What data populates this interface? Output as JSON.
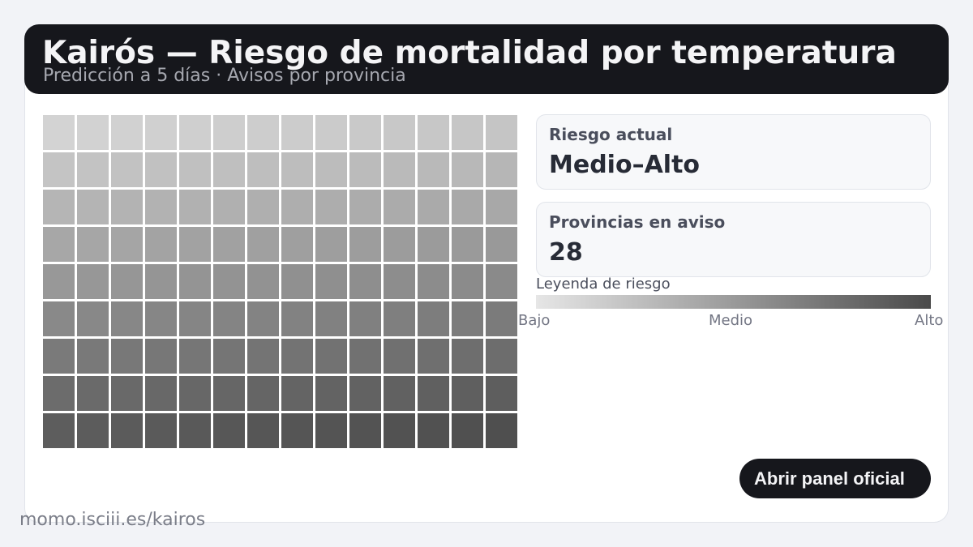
{
  "header": {
    "title": "Kairós — Riesgo de mortalidad por temperatura",
    "subtitle": "Predicción a 5 días · Avisos por provincia"
  },
  "grid": {
    "rows": 9,
    "columns": 14,
    "color_low": "#d3d3d3",
    "color_high": "#4f4f4f"
  },
  "stats": [
    {
      "label": "Riesgo actual",
      "value": "Medio–Alto"
    },
    {
      "label": "Provincias en aviso",
      "value": "28"
    }
  ],
  "legend": {
    "title": "Leyenda de riesgo",
    "ticks": [
      "Bajo",
      "Medio",
      "Alto"
    ]
  },
  "button": {
    "label": "Abrir panel oficial"
  },
  "footer": {
    "url": "momo.isciii.es/kairos"
  },
  "colors": {
    "header_bg": "#16171c",
    "page_bg": "#f2f3f7"
  }
}
